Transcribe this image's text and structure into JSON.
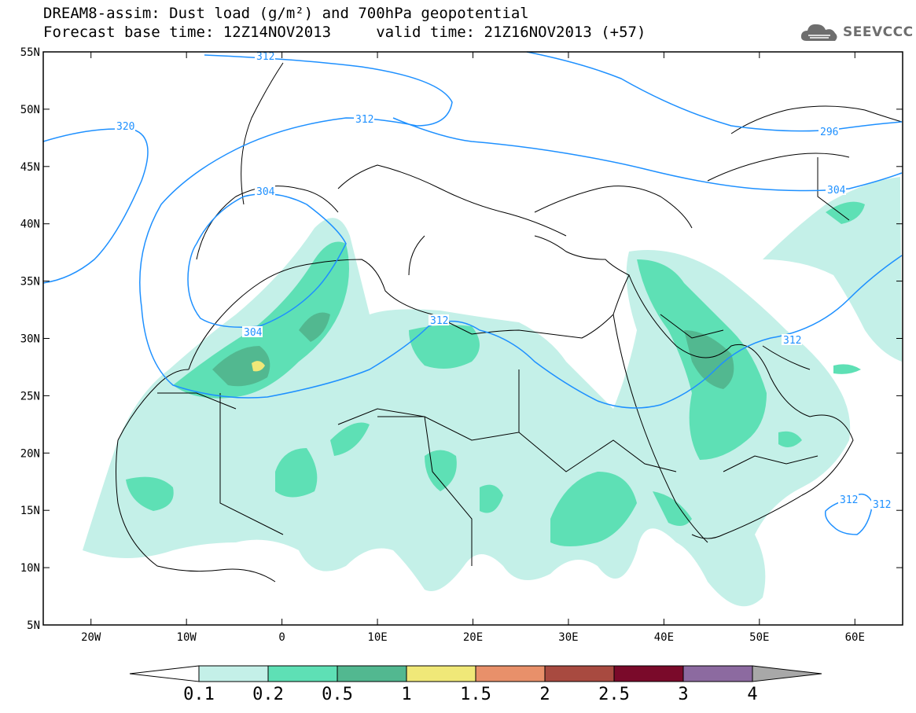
{
  "title": {
    "line1": "DREAM8-assim: Dust load (g/m²) and 700hPa geopotential",
    "line2": "Forecast base time: 12Z14NOV2013     valid time: 21Z16NOV2013 (+57)"
  },
  "logo": {
    "icon": "cloud-icon",
    "text": "SEEVCCC"
  },
  "map": {
    "lon_range": [
      -25,
      65
    ],
    "lat_range": [
      5,
      55
    ],
    "lat_ticks": [
      "55N",
      "50N",
      "45N",
      "40N",
      "35N",
      "30N",
      "25N",
      "20N",
      "15N",
      "10N",
      "5N"
    ],
    "lon_ticks": [
      "20W",
      "10W",
      "0",
      "10E",
      "20E",
      "30E",
      "40E",
      "50E",
      "60E"
    ],
    "contour_color": "#1e90ff",
    "contour_labels": [
      "312",
      "312",
      "320",
      "296",
      "304",
      "304",
      "304",
      "312",
      "312",
      "312",
      "312"
    ]
  },
  "colorbar": {
    "labels": [
      "0.1",
      "0.2",
      "0.5",
      "1",
      "1.5",
      "2",
      "2.5",
      "3",
      "4"
    ],
    "colors": [
      "#ffffff",
      "#c4f0e8",
      "#5ee0b5",
      "#52b890",
      "#f0e878",
      "#e8906a",
      "#a84a40",
      "#7a0a2a",
      "#8c6aa0",
      "#a8a8a8"
    ]
  }
}
